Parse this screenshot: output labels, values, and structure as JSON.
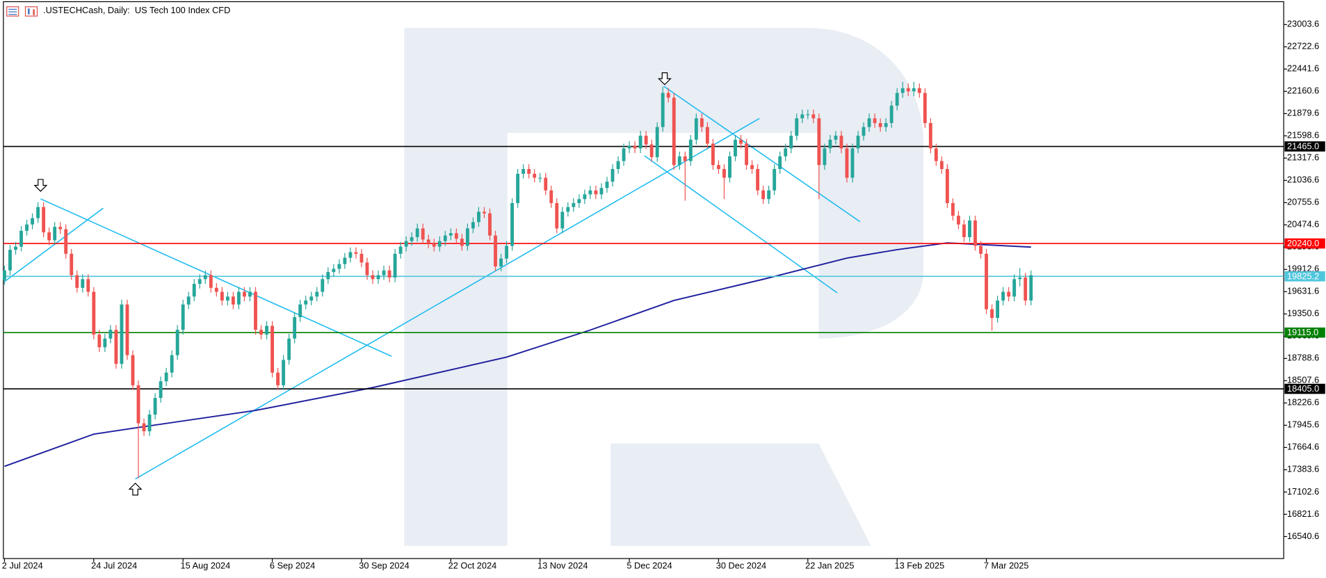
{
  "chart_data": {
    "type": "candlestick",
    "title": ".USTECHCash, Daily:  US Tech 100 Index CFD",
    "xlim": [
      -0.2,
      229.3
    ],
    "xticks": [
      {
        "value": 0,
        "label": "2 Jul 2024"
      },
      {
        "value": 16,
        "label": "24 Jul 2024"
      },
      {
        "value": 32,
        "label": "15 Aug 2024"
      },
      {
        "value": 48,
        "label": "6 Sep 2024"
      },
      {
        "value": 64,
        "label": "30 Sep 2024"
      },
      {
        "value": 80,
        "label": "22 Oct 2024"
      },
      {
        "value": 96,
        "label": "13 Nov 2024"
      },
      {
        "value": 112,
        "label": "5 Dec 2024"
      },
      {
        "value": 128,
        "label": "30 Dec 2024"
      },
      {
        "value": 144,
        "label": "22 Jan 2025"
      },
      {
        "value": 160,
        "label": "13 Feb 2025"
      },
      {
        "value": 176,
        "label": "7 Mar 2025"
      }
    ],
    "ylim": [
      16263,
      23292
    ],
    "yticks": [
      16540.6,
      16821.6,
      17102.6,
      17383.6,
      17664.6,
      17945.6,
      18226.6,
      18507.6,
      18788.6,
      19069.6,
      19350.6,
      19631.6,
      19912.6,
      20193.6,
      20474.6,
      20755.6,
      21036.6,
      21317.6,
      21598.6,
      21879.6,
      22160.6,
      22441.6,
      22722.6,
      23003.6
    ],
    "candles": {
      "up_color": "#26a69a",
      "down_color": "#ef5350",
      "open": [
        19780,
        19900,
        20160,
        20200,
        20400,
        20480,
        20560,
        20700,
        20380,
        20280,
        20450,
        20420,
        20110,
        19840,
        19680,
        19790,
        19630,
        19090,
        18930,
        19040,
        19150,
        18720,
        19470,
        18830,
        18450,
        17970,
        17870,
        18080,
        18290,
        18500,
        18610,
        18830,
        19150,
        19470,
        19570,
        19730,
        19790,
        19840,
        19680,
        19630,
        19520,
        19570,
        19470,
        19630,
        19570,
        19630,
        19150,
        19090,
        19200,
        18610,
        18450,
        18770,
        19040,
        19310,
        19470,
        19520,
        19570,
        19630,
        19790,
        19880,
        19920,
        19980,
        20060,
        20130,
        20110,
        20000,
        19840,
        19790,
        19840,
        19900,
        19810,
        20110,
        20200,
        20270,
        20320,
        20430,
        20290,
        20240,
        20200,
        20270,
        20340,
        20370,
        20300,
        20210,
        20430,
        20510,
        20640,
        20620,
        20340,
        19950,
        20050,
        20210,
        20750,
        21120,
        21180,
        21120,
        21070,
        21070,
        20910,
        20750,
        20430,
        20640,
        20700,
        20750,
        20800,
        20860,
        20910,
        20860,
        20940,
        21020,
        21180,
        21280,
        21440,
        21470,
        21440,
        21600,
        21490,
        21330,
        21710,
        22140,
        22080,
        21230,
        21340,
        21280,
        21550,
        21820,
        21710,
        21500,
        21230,
        21180,
        21070,
        21340,
        21550,
        21500,
        21230,
        21180,
        20910,
        20800,
        20910,
        21180,
        21340,
        21440,
        21600,
        21820,
        21870,
        21870,
        21820,
        21230,
        21440,
        21550,
        21600,
        21440,
        21070,
        21440,
        21600,
        21710,
        21820,
        21760,
        21710,
        21760,
        21980,
        22140,
        22200,
        22160,
        22200,
        22140,
        21760,
        21440,
        21280,
        21180,
        20750,
        20590,
        20480,
        20320,
        20530,
        20210,
        20110,
        19410,
        19300,
        19520,
        19630,
        19570,
        19790,
        19810,
        19520
      ],
      "high": [
        19960,
        20220,
        20260,
        20460,
        20540,
        20620,
        20760,
        20760,
        20440,
        20510,
        20510,
        20480,
        20170,
        19900,
        19850,
        19850,
        19690,
        19150,
        19100,
        19210,
        19210,
        19530,
        19530,
        18890,
        18510,
        18030,
        18140,
        18350,
        18560,
        18670,
        18890,
        19210,
        19530,
        19630,
        19790,
        19850,
        19900,
        19900,
        19740,
        19690,
        19630,
        19630,
        19690,
        19690,
        19690,
        19690,
        19210,
        19260,
        19260,
        18670,
        18830,
        19100,
        19370,
        19530,
        19580,
        19630,
        19690,
        19850,
        19940,
        19980,
        20040,
        20120,
        20190,
        20190,
        20170,
        20060,
        19900,
        19900,
        19960,
        19960,
        20170,
        20260,
        20330,
        20380,
        20490,
        20490,
        20350,
        20300,
        20330,
        20400,
        20430,
        20430,
        20360,
        20490,
        20570,
        20700,
        20700,
        20680,
        20400,
        20110,
        20270,
        20810,
        21180,
        21240,
        21240,
        21180,
        21130,
        21130,
        20970,
        20810,
        20700,
        20760,
        20810,
        20860,
        20920,
        20970,
        20970,
        21000,
        21080,
        21240,
        21340,
        21500,
        21530,
        21530,
        21660,
        21660,
        21550,
        21770,
        22220,
        22200,
        22140,
        21400,
        21400,
        21610,
        21880,
        21880,
        21770,
        21560,
        21290,
        21240,
        21400,
        21610,
        21610,
        21560,
        21290,
        21240,
        20970,
        20970,
        21240,
        21400,
        21500,
        21660,
        21880,
        21930,
        21930,
        21930,
        21880,
        21500,
        21610,
        21660,
        21660,
        21500,
        21500,
        21660,
        21770,
        21880,
        21880,
        21820,
        21820,
        22040,
        22200,
        22280,
        22260,
        22280,
        22260,
        22200,
        21820,
        21500,
        21340,
        21240,
        20810,
        20650,
        20540,
        20590,
        20590,
        20270,
        20170,
        19470,
        19580,
        19690,
        19690,
        19850,
        19930,
        19870,
        19900
      ],
      "low": [
        19720,
        19840,
        20100,
        20140,
        20340,
        20420,
        20500,
        20320,
        20220,
        20220,
        20360,
        20050,
        19780,
        19620,
        19620,
        19570,
        19030,
        18870,
        18870,
        18980,
        18660,
        18660,
        18770,
        18390,
        17277,
        17810,
        17810,
        18020,
        18230,
        18440,
        18550,
        18770,
        19090,
        19410,
        19510,
        19670,
        19730,
        19620,
        19570,
        19460,
        19460,
        19410,
        19410,
        19510,
        19510,
        19090,
        19030,
        19030,
        18550,
        18390,
        18390,
        18710,
        18980,
        19250,
        19410,
        19460,
        19510,
        19570,
        19730,
        19820,
        19860,
        19920,
        20000,
        20050,
        19940,
        19780,
        19730,
        19730,
        19780,
        19750,
        19750,
        20050,
        20140,
        20210,
        20260,
        20230,
        20180,
        20140,
        20140,
        20210,
        20280,
        20240,
        20150,
        20150,
        20370,
        20450,
        20560,
        20280,
        19890,
        19890,
        19990,
        20150,
        20690,
        21060,
        21060,
        21010,
        21010,
        20850,
        20690,
        20370,
        20370,
        20580,
        20640,
        20690,
        20740,
        20800,
        20800,
        20800,
        20880,
        20960,
        21120,
        21220,
        21380,
        21380,
        21380,
        21430,
        21270,
        21270,
        21650,
        22020,
        21170,
        21170,
        20780,
        21220,
        21490,
        21650,
        21440,
        21170,
        21120,
        20800,
        21010,
        21280,
        21440,
        21170,
        21120,
        20850,
        20740,
        20740,
        20850,
        21120,
        21280,
        21380,
        21540,
        21760,
        21810,
        21760,
        20800,
        21170,
        21380,
        21490,
        21380,
        21010,
        21010,
        21380,
        21540,
        21650,
        21700,
        21650,
        21650,
        21700,
        21920,
        22080,
        22100,
        22100,
        22080,
        21700,
        21380,
        21220,
        21120,
        20690,
        20530,
        20420,
        20260,
        20260,
        20150,
        20050,
        19350,
        19140,
        19240,
        19460,
        19510,
        19510,
        19700,
        19460,
        19460
      ],
      "close": [
        19900,
        20160,
        20200,
        20400,
        20480,
        20560,
        20700,
        20380,
        20280,
        20450,
        20420,
        20110,
        19840,
        19680,
        19790,
        19630,
        19090,
        18930,
        19040,
        19150,
        18720,
        19470,
        18830,
        18450,
        17970,
        17870,
        18080,
        18290,
        18500,
        18610,
        18830,
        19150,
        19470,
        19570,
        19730,
        19790,
        19840,
        19680,
        19630,
        19520,
        19570,
        19470,
        19630,
        19570,
        19630,
        19150,
        19090,
        19200,
        18610,
        18450,
        18770,
        19040,
        19310,
        19470,
        19520,
        19570,
        19630,
        19790,
        19880,
        19920,
        19980,
        20060,
        20130,
        20110,
        20000,
        19840,
        19790,
        19840,
        19900,
        19810,
        20110,
        20200,
        20270,
        20320,
        20430,
        20290,
        20240,
        20200,
        20270,
        20340,
        20370,
        20300,
        20210,
        20430,
        20510,
        20640,
        20620,
        20340,
        19950,
        20050,
        20210,
        20750,
        21120,
        21180,
        21120,
        21070,
        21070,
        20910,
        20750,
        20430,
        20640,
        20700,
        20750,
        20800,
        20860,
        20910,
        20860,
        20940,
        21020,
        21180,
        21280,
        21440,
        21470,
        21440,
        21600,
        21490,
        21330,
        21710,
        22140,
        22080,
        21230,
        21340,
        21280,
        21550,
        21820,
        21710,
        21500,
        21230,
        21180,
        21070,
        21340,
        21550,
        21500,
        21230,
        21180,
        20910,
        20800,
        20910,
        21180,
        21340,
        21440,
        21600,
        21820,
        21870,
        21870,
        21820,
        21230,
        21440,
        21550,
        21600,
        21440,
        21070,
        21440,
        21600,
        21710,
        21820,
        21760,
        21710,
        21760,
        21980,
        22140,
        22200,
        22160,
        22200,
        22140,
        21760,
        21440,
        21280,
        21180,
        20750,
        20590,
        20480,
        20320,
        20530,
        20210,
        20110,
        19410,
        19300,
        19520,
        19630,
        19570,
        19790,
        19810,
        19520,
        19840
      ]
    },
    "moving_average": {
      "color": "#1f1f9e",
      "x": [
        0,
        16,
        24,
        45,
        66,
        90,
        105,
        120,
        136,
        151,
        160,
        169,
        184
      ],
      "values": [
        17427,
        17833,
        17918,
        18132,
        18421,
        18805,
        19147,
        19521,
        19788,
        20055,
        20162,
        20248,
        20194
      ]
    },
    "levels": [
      {
        "value": 21465,
        "label": "21465.0",
        "color": "#000000"
      },
      {
        "value": 20240,
        "label": "20240.0",
        "color": "#ff0000"
      },
      {
        "value": 19825.2,
        "label": "19825.2",
        "color": "#4fc6dc"
      },
      {
        "value": 19115,
        "label": "19115.0",
        "color": "#008000"
      },
      {
        "value": 18405,
        "label": "18405.0",
        "color": "#000000"
      }
    ]
  }
}
